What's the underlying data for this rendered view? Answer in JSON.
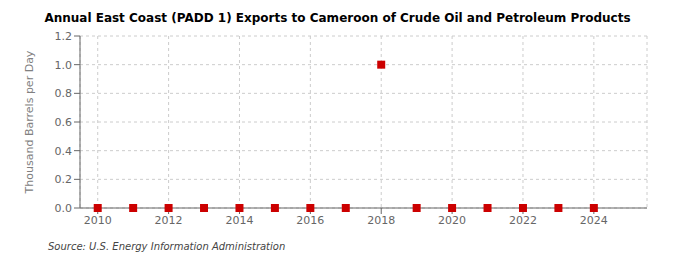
{
  "chart_data": {
    "type": "scatter",
    "title": "Annual East Coast (PADD 1) Exports to Cameroon of Crude Oil and Petroleum Products",
    "ylabel": "Thousand Barrels per Day",
    "annotations": [
      "Source: U.S. Energy Information Administration"
    ],
    "x": [
      2010,
      2011,
      2012,
      2013,
      2014,
      2015,
      2016,
      2017,
      2018,
      2019,
      2020,
      2021,
      2022,
      2023,
      2024
    ],
    "values": [
      0.0,
      0.0,
      0.0,
      0.0,
      0.0,
      0.0,
      0.0,
      0.0,
      1.0,
      0.0,
      0.0,
      0.0,
      0.0,
      0.0,
      0.0
    ],
    "color": "#cc0000",
    "marker": "square",
    "xlim": [
      2009.5,
      2025.5
    ],
    "xticks": [
      2010,
      2012,
      2014,
      2016,
      2018,
      2020,
      2022,
      2024
    ],
    "ylim": [
      0.0,
      1.2
    ],
    "yticks": [
      {
        "value": 0.0,
        "label": "0.0"
      },
      0.2,
      0.4,
      0.6,
      0.8,
      {
        "value": 1.0,
        "label": "1.0"
      },
      1.2
    ],
    "grid": true
  }
}
